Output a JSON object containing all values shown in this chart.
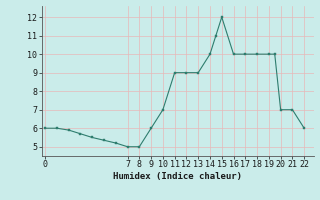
{
  "x": [
    0,
    1,
    2,
    3,
    4,
    5,
    6,
    7,
    8,
    9,
    10,
    11,
    12,
    13,
    14,
    14.5,
    15,
    16,
    17,
    18,
    19,
    19.5,
    20,
    21,
    22
  ],
  "y": [
    6,
    6,
    5.9,
    5.7,
    5.5,
    5.35,
    5.2,
    5,
    5,
    6,
    7,
    9,
    9,
    9,
    10,
    11,
    12,
    10,
    10,
    10,
    10,
    10,
    7,
    7,
    6
  ],
  "xlabel": "Humidex (Indice chaleur)",
  "xticks": [
    0,
    7,
    8,
    9,
    10,
    11,
    12,
    13,
    14,
    15,
    16,
    17,
    18,
    19,
    20,
    21,
    22
  ],
  "yticks": [
    5,
    6,
    7,
    8,
    9,
    10,
    11,
    12
  ],
  "xlim": [
    -0.3,
    22.8
  ],
  "ylim": [
    4.5,
    12.6
  ],
  "line_color": "#2e7d6e",
  "marker_color": "#2e7d6e",
  "bg_color": "#caecea",
  "grid_color_minor": "#e8b8b8",
  "grid_color_major": "#e8b8b8",
  "label_fontsize": 6.5,
  "tick_fontsize": 6.0
}
